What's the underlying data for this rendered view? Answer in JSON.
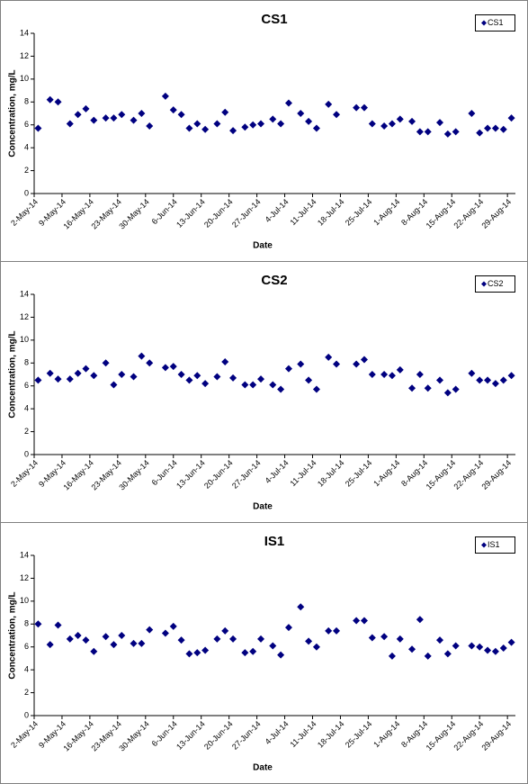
{
  "chart_data": [
    {
      "type": "scatter",
      "title": "CS1",
      "x_label": "Date",
      "y_label": "Concentration, mg/L",
      "legend": "top-right",
      "xlim": [
        "2014-05-02",
        "2014-08-31"
      ],
      "xticks": [
        {
          "value": "2014-05-02",
          "label": "2-May-14"
        },
        {
          "value": "2014-05-09",
          "label": "9-May-14"
        },
        {
          "value": "2014-05-16",
          "label": "16-May-14"
        },
        {
          "value": "2014-05-23",
          "label": "23-May-14"
        },
        {
          "value": "2014-05-30",
          "label": "30-May-14"
        },
        {
          "value": "2014-06-06",
          "label": "6-Jun-14"
        },
        {
          "value": "2014-06-13",
          "label": "13-Jun-14"
        },
        {
          "value": "2014-06-20",
          "label": "20-Jun-14"
        },
        {
          "value": "2014-06-27",
          "label": "27-Jun-14"
        },
        {
          "value": "2014-07-04",
          "label": "4-Jul-14"
        },
        {
          "value": "2014-07-11",
          "label": "11-Jul-14"
        },
        {
          "value": "2014-07-18",
          "label": "18-Jul-14"
        },
        {
          "value": "2014-07-25",
          "label": "25-Jul-14"
        },
        {
          "value": "2014-08-01",
          "label": "1-Aug-14"
        },
        {
          "value": "2014-08-08",
          "label": "8-Aug-14"
        },
        {
          "value": "2014-08-15",
          "label": "15-Aug-14"
        },
        {
          "value": "2014-08-22",
          "label": "22-Aug-14"
        },
        {
          "value": "2014-08-29",
          "label": "29-Aug-14"
        }
      ],
      "ylim": [
        0,
        14
      ],
      "yticks": [
        0,
        2,
        4,
        6,
        8,
        10,
        12,
        14
      ],
      "x": [
        "2014-05-03",
        "2014-05-06",
        "2014-05-08",
        "2014-05-11",
        "2014-05-13",
        "2014-05-15",
        "2014-05-17",
        "2014-05-20",
        "2014-05-22",
        "2014-05-24",
        "2014-05-27",
        "2014-05-29",
        "2014-05-31",
        "2014-06-04",
        "2014-06-06",
        "2014-06-08",
        "2014-06-10",
        "2014-06-12",
        "2014-06-14",
        "2014-06-17",
        "2014-06-19",
        "2014-06-21",
        "2014-06-24",
        "2014-06-26",
        "2014-06-28",
        "2014-07-01",
        "2014-07-03",
        "2014-07-05",
        "2014-07-08",
        "2014-07-10",
        "2014-07-12",
        "2014-07-15",
        "2014-07-17",
        "2014-07-22",
        "2014-07-24",
        "2014-07-26",
        "2014-07-29",
        "2014-07-31",
        "2014-08-02",
        "2014-08-05",
        "2014-08-07",
        "2014-08-09",
        "2014-08-12",
        "2014-08-14",
        "2014-08-16",
        "2014-08-20",
        "2014-08-22",
        "2014-08-24",
        "2014-08-26",
        "2014-08-28",
        "2014-08-30"
      ],
      "series": [
        {
          "name": "CS1",
          "color": "#000080",
          "values": [
            5.7,
            8.2,
            8.0,
            6.1,
            6.9,
            7.4,
            6.4,
            6.6,
            6.6,
            6.9,
            6.4,
            7.0,
            5.9,
            8.5,
            7.3,
            6.9,
            5.7,
            6.1,
            5.6,
            6.1,
            7.1,
            5.5,
            5.8,
            6.0,
            6.1,
            6.5,
            6.1,
            7.9,
            7.0,
            6.3,
            5.7,
            7.8,
            6.9,
            7.5,
            7.5,
            6.1,
            5.9,
            6.1,
            6.5,
            6.3,
            5.4,
            5.4,
            6.2,
            5.2,
            5.4,
            7.0,
            5.3,
            5.7,
            5.7,
            5.6,
            6.6
          ]
        }
      ]
    },
    {
      "type": "scatter",
      "title": "CS2",
      "x_label": "Date",
      "y_label": "Concentration, mg/L",
      "legend": "top-right",
      "xlim": [
        "2014-05-02",
        "2014-08-31"
      ],
      "xticks": [
        {
          "value": "2014-05-02",
          "label": "2-May-14"
        },
        {
          "value": "2014-05-09",
          "label": "9-May-14"
        },
        {
          "value": "2014-05-16",
          "label": "16-May-14"
        },
        {
          "value": "2014-05-23",
          "label": "23-May-14"
        },
        {
          "value": "2014-05-30",
          "label": "30-May-14"
        },
        {
          "value": "2014-06-06",
          "label": "6-Jun-14"
        },
        {
          "value": "2014-06-13",
          "label": "13-Jun-14"
        },
        {
          "value": "2014-06-20",
          "label": "20-Jun-14"
        },
        {
          "value": "2014-06-27",
          "label": "27-Jun-14"
        },
        {
          "value": "2014-07-04",
          "label": "4-Jul-14"
        },
        {
          "value": "2014-07-11",
          "label": "11-Jul-14"
        },
        {
          "value": "2014-07-18",
          "label": "18-Jul-14"
        },
        {
          "value": "2014-07-25",
          "label": "25-Jul-14"
        },
        {
          "value": "2014-08-01",
          "label": "1-Aug-14"
        },
        {
          "value": "2014-08-08",
          "label": "8-Aug-14"
        },
        {
          "value": "2014-08-15",
          "label": "15-Aug-14"
        },
        {
          "value": "2014-08-22",
          "label": "22-Aug-14"
        },
        {
          "value": "2014-08-29",
          "label": "29-Aug-14"
        }
      ],
      "ylim": [
        0,
        14
      ],
      "yticks": [
        0,
        2,
        4,
        6,
        8,
        10,
        12,
        14
      ],
      "x": [
        "2014-05-03",
        "2014-05-06",
        "2014-05-08",
        "2014-05-11",
        "2014-05-13",
        "2014-05-15",
        "2014-05-17",
        "2014-05-20",
        "2014-05-22",
        "2014-05-24",
        "2014-05-27",
        "2014-05-29",
        "2014-05-31",
        "2014-06-04",
        "2014-06-06",
        "2014-06-08",
        "2014-06-10",
        "2014-06-12",
        "2014-06-14",
        "2014-06-17",
        "2014-06-19",
        "2014-06-21",
        "2014-06-24",
        "2014-06-26",
        "2014-06-28",
        "2014-07-01",
        "2014-07-03",
        "2014-07-05",
        "2014-07-08",
        "2014-07-10",
        "2014-07-12",
        "2014-07-15",
        "2014-07-17",
        "2014-07-22",
        "2014-07-24",
        "2014-07-26",
        "2014-07-29",
        "2014-07-31",
        "2014-08-02",
        "2014-08-05",
        "2014-08-07",
        "2014-08-09",
        "2014-08-12",
        "2014-08-14",
        "2014-08-16",
        "2014-08-20",
        "2014-08-22",
        "2014-08-24",
        "2014-08-26",
        "2014-08-28",
        "2014-08-30"
      ],
      "series": [
        {
          "name": "CS2",
          "color": "#000080",
          "values": [
            6.5,
            7.1,
            6.6,
            6.6,
            7.1,
            7.5,
            6.9,
            8.0,
            6.1,
            7.0,
            6.8,
            8.6,
            8.0,
            7.6,
            7.7,
            7.0,
            6.5,
            6.9,
            6.2,
            6.8,
            8.1,
            6.7,
            6.1,
            6.1,
            6.6,
            6.1,
            5.7,
            7.5,
            7.9,
            6.5,
            5.7,
            8.5,
            7.9,
            7.9,
            8.3,
            7.0,
            7.0,
            6.9,
            7.4,
            5.8,
            7.0,
            5.8,
            6.5,
            5.4,
            5.7,
            7.1,
            6.5,
            6.5,
            6.2,
            6.5,
            6.9
          ]
        }
      ]
    },
    {
      "type": "scatter",
      "title": "IS1",
      "x_label": "Date",
      "y_label": "Concentration, mg/L",
      "legend": "top-right",
      "xlim": [
        "2014-05-02",
        "2014-08-31"
      ],
      "xticks": [
        {
          "value": "2014-05-02",
          "label": "2-May-14"
        },
        {
          "value": "2014-05-09",
          "label": "9-May-14"
        },
        {
          "value": "2014-05-16",
          "label": "16-May-14"
        },
        {
          "value": "2014-05-23",
          "label": "23-May-14"
        },
        {
          "value": "2014-05-30",
          "label": "30-May-14"
        },
        {
          "value": "2014-06-06",
          "label": "6-Jun-14"
        },
        {
          "value": "2014-06-13",
          "label": "13-Jun-14"
        },
        {
          "value": "2014-06-20",
          "label": "20-Jun-14"
        },
        {
          "value": "2014-06-27",
          "label": "27-Jun-14"
        },
        {
          "value": "2014-07-04",
          "label": "4-Jul-14"
        },
        {
          "value": "2014-07-11",
          "label": "11-Jul-14"
        },
        {
          "value": "2014-07-18",
          "label": "18-Jul-14"
        },
        {
          "value": "2014-07-25",
          "label": "25-Jul-14"
        },
        {
          "value": "2014-08-01",
          "label": "1-Aug-14"
        },
        {
          "value": "2014-08-08",
          "label": "8-Aug-14"
        },
        {
          "value": "2014-08-15",
          "label": "15-Aug-14"
        },
        {
          "value": "2014-08-22",
          "label": "22-Aug-14"
        },
        {
          "value": "2014-08-29",
          "label": "29-Aug-14"
        }
      ],
      "ylim": [
        0,
        14
      ],
      "yticks": [
        0,
        2,
        4,
        6,
        8,
        10,
        12,
        14
      ],
      "x": [
        "2014-05-03",
        "2014-05-06",
        "2014-05-08",
        "2014-05-11",
        "2014-05-13",
        "2014-05-15",
        "2014-05-17",
        "2014-05-20",
        "2014-05-22",
        "2014-05-24",
        "2014-05-27",
        "2014-05-29",
        "2014-05-31",
        "2014-06-04",
        "2014-06-06",
        "2014-06-08",
        "2014-06-10",
        "2014-06-12",
        "2014-06-14",
        "2014-06-17",
        "2014-06-19",
        "2014-06-21",
        "2014-06-24",
        "2014-06-26",
        "2014-06-28",
        "2014-07-01",
        "2014-07-03",
        "2014-07-05",
        "2014-07-08",
        "2014-07-10",
        "2014-07-12",
        "2014-07-15",
        "2014-07-17",
        "2014-07-22",
        "2014-07-24",
        "2014-07-26",
        "2014-07-29",
        "2014-07-31",
        "2014-08-02",
        "2014-08-05",
        "2014-08-07",
        "2014-08-09",
        "2014-08-12",
        "2014-08-14",
        "2014-08-16",
        "2014-08-20",
        "2014-08-22",
        "2014-08-24",
        "2014-08-26",
        "2014-08-28",
        "2014-08-30"
      ],
      "series": [
        {
          "name": "IS1",
          "color": "#000080",
          "values": [
            8.0,
            6.2,
            7.9,
            6.7,
            7.0,
            6.6,
            5.6,
            6.9,
            6.2,
            7.0,
            6.3,
            6.3,
            7.5,
            7.2,
            7.8,
            6.6,
            5.4,
            5.5,
            5.7,
            6.7,
            7.4,
            6.7,
            5.5,
            5.6,
            6.7,
            6.1,
            5.3,
            7.7,
            9.5,
            6.5,
            6.0,
            7.4,
            7.4,
            8.3,
            8.3,
            6.8,
            6.9,
            5.2,
            6.7,
            5.8,
            8.4,
            5.2,
            6.6,
            5.4,
            6.1,
            6.1,
            6.0,
            5.7,
            5.6,
            5.9,
            6.4
          ]
        }
      ]
    }
  ]
}
